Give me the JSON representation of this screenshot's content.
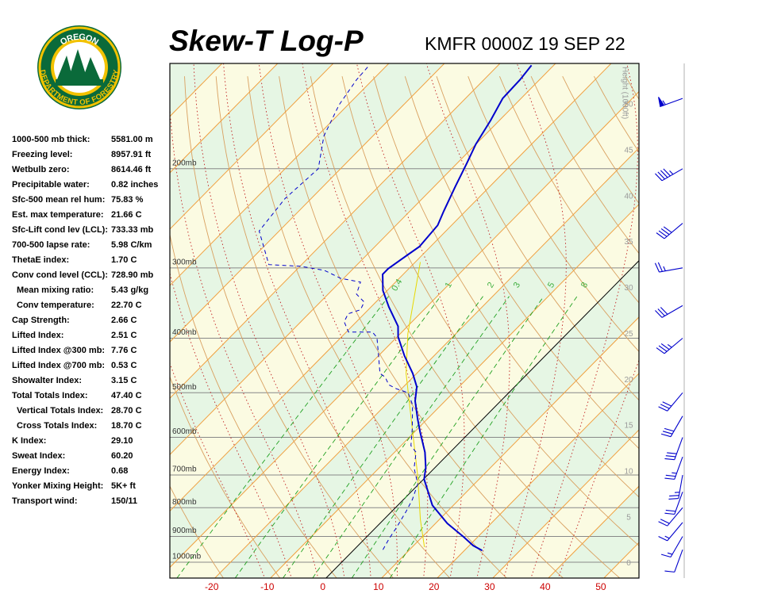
{
  "logo": {
    "top": "OREGON",
    "ring": "DEPARTMENT OF FORESTRY"
  },
  "header": {
    "title": "Skew-T Log-P",
    "subtitle": "KMFR 0000Z 19 SEP 22"
  },
  "indices": [
    {
      "label": "1000-500 mb thick:",
      "value": "5581.00 m"
    },
    {
      "label": "Freezing level:",
      "value": "8957.91 ft"
    },
    {
      "label": "Wetbulb zero:",
      "value": "8614.46 ft"
    },
    {
      "label": "Precipitable water:",
      "value": "0.82 inches"
    },
    {
      "label": "Sfc-500 mean rel hum:",
      "value": "75.83 %"
    },
    {
      "label": "Est. max temperature:",
      "value": "21.66 C"
    },
    {
      "label": "Sfc-Lift cond lev (LCL):",
      "value": "733.33 mb"
    },
    {
      "label": "700-500 lapse rate:",
      "value": "5.98 C/km"
    },
    {
      "label": "ThetaE index:",
      "value": "1.70 C"
    },
    {
      "label": "Conv cond level (CCL):",
      "value": "728.90 mb",
      "sub": [
        {
          "label": "Mean mixing ratio:",
          "value": "5.43 g/kg"
        },
        {
          "label": "Conv temperature:",
          "value": "22.70 C"
        }
      ]
    },
    {
      "label": "Cap Strength:",
      "value": "2.66 C"
    },
    {
      "label": "Lifted Index:",
      "value": "2.51 C"
    },
    {
      "label": "Lifted Index @300 mb:",
      "value": "7.76 C"
    },
    {
      "label": "Lifted Index @700 mb:",
      "value": "0.53 C"
    },
    {
      "label": "Showalter Index:",
      "value": "3.15 C"
    },
    {
      "label": "Total Totals Index:",
      "value": "47.40 C",
      "sub": [
        {
          "label": "Vertical Totals Index:",
          "value": "28.70 C"
        },
        {
          "label": "Cross Totals Index:",
          "value": "18.70 C"
        }
      ]
    },
    {
      "label": "K Index:",
      "value": "29.10"
    },
    {
      "label": "Sweat Index:",
      "value": "60.20"
    },
    {
      "label": "Energy Index:",
      "value": "0.68"
    },
    {
      "label": "Yonker Mixing Height:",
      "value": "5K+ ft"
    },
    {
      "label": "Transport wind:",
      "value": "150/11"
    }
  ],
  "chart_data": {
    "type": "skewt",
    "xlim": [
      -28.1,
      56.3
    ],
    "xticks": [
      -20,
      -10,
      0,
      10,
      20,
      30,
      40,
      50
    ],
    "ylim": [
      1067,
      130
    ],
    "log_y": true,
    "yticks": [
      {
        "value": 200,
        "label": "200mb"
      },
      {
        "value": 300,
        "label": "300mb"
      },
      {
        "value": 400,
        "label": "400mb"
      },
      {
        "value": 500,
        "label": "500mb"
      },
      {
        "value": 600,
        "label": "600mb"
      },
      {
        "value": 700,
        "label": "700mb"
      },
      {
        "value": 800,
        "label": "800mb"
      },
      {
        "value": 900,
        "label": "900mb"
      },
      {
        "value": 1000,
        "label": "1000mb"
      }
    ],
    "height_label": "Height (1000ft)",
    "hlim": [
      -1.6,
      54.5
    ],
    "hticks": [
      0,
      5,
      10,
      15,
      20,
      25,
      30,
      35,
      40,
      45,
      50
    ],
    "mixing_ratio_lines": [
      {
        "value": 0.4,
        "label": "0.4"
      },
      1,
      2,
      3,
      5,
      8
    ],
    "temperature": {
      "color": "#0000cc",
      "pressure": [
        953,
        934,
        902,
        853,
        792,
        712,
        680,
        638,
        588,
        557,
        517,
        488,
        462,
        430,
        398,
        381,
        352,
        329,
        308,
        301,
        285,
        275,
        252,
        238,
        215,
        196,
        181,
        164,
        150,
        139,
        131
      ],
      "values": [
        23.2,
        20.7,
        17.5,
        12.1,
        6.2,
        0.1,
        -1.6,
        -4.5,
        -8.9,
        -11.7,
        -15.4,
        -17.6,
        -20.7,
        -25.3,
        -29.8,
        -31.7,
        -36.8,
        -40.8,
        -43.7,
        -43.7,
        -42.7,
        -42.0,
        -42.5,
        -43.9,
        -46.2,
        -48.2,
        -50.0,
        -51.6,
        -53.3,
        -53.5,
        -54.0
      ]
    },
    "dewpoint": {
      "color": "#0000cc",
      "pressure": [
        950,
        910,
        867,
        813,
        774,
        726,
        698,
        680,
        638,
        621,
        579,
        525,
        500,
        492,
        484,
        469,
        462,
        426,
        399,
        390,
        390,
        374,
        362,
        356,
        345,
        334,
        318,
        313,
        303,
        298,
        296,
        258,
        226,
        200,
        175,
        154,
        139,
        131
      ],
      "values": [
        5.2,
        4.4,
        3.7,
        2.6,
        1.6,
        -0.2,
        -2.3,
        -3.7,
        -6.1,
        -8.2,
        -11.0,
        -15.2,
        -18.1,
        -20.9,
        -23.0,
        -25.0,
        -26.6,
        -30.4,
        -33.5,
        -35.3,
        -39.6,
        -42.2,
        -42.9,
        -41.4,
        -42.1,
        -44.9,
        -46.3,
        -50.6,
        -54.9,
        -59.9,
        -65.9,
        -73.6,
        -74.7,
        -74.0,
        -78.8,
        -81.6,
        -82.9,
        -83.2
      ]
    },
    "parcel": {
      "color": "#e8d800",
      "pressure": [
        940,
        840,
        703,
        579,
        462,
        393,
        293
      ],
      "values": [
        12.2,
        6.6,
        -1.6,
        -11.0,
        -21.9,
        -28.6,
        -39.1
      ]
    },
    "wind": {
      "color": "#0000cc",
      "pressure": [
        950,
        900,
        850,
        800,
        750,
        700,
        650,
        600,
        550,
        500,
        400,
        350,
        300,
        250,
        200,
        150
      ],
      "direction": [
        200,
        210,
        220,
        220,
        200,
        190,
        200,
        200,
        210,
        220,
        230,
        240,
        260,
        230,
        240,
        250
      ],
      "speed": [
        10,
        15,
        15,
        20,
        20,
        25,
        25,
        30,
        30,
        30,
        35,
        30,
        25,
        40,
        45,
        55
      ]
    }
  }
}
